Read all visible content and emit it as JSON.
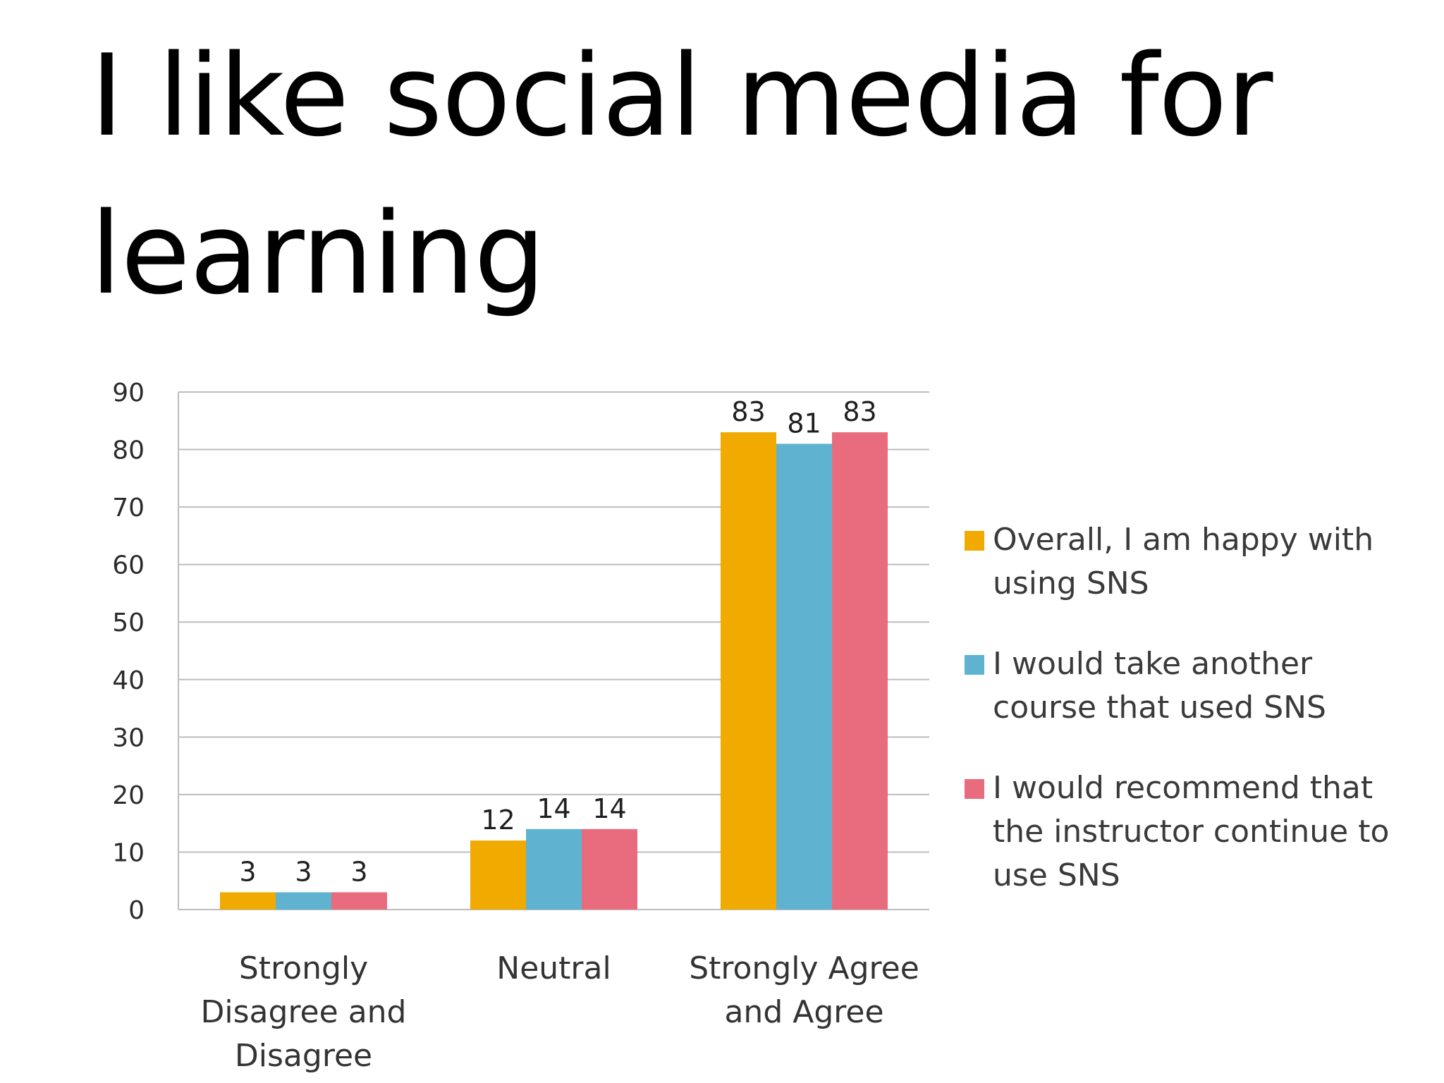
{
  "page": {
    "title": "I like social media for learning"
  },
  "chart_data": {
    "type": "bar",
    "title": "",
    "xlabel": "",
    "ylabel": "",
    "ylim": [
      0,
      90
    ],
    "yticks": [
      0,
      10,
      20,
      30,
      40,
      50,
      60,
      70,
      80,
      90
    ],
    "grid": true,
    "legend_position": "right",
    "categories": [
      [
        "Strongly",
        "Disagree and",
        "Disagree"
      ],
      [
        "Neutral"
      ],
      [
        "Strongly Agree",
        "and Agree"
      ]
    ],
    "series": [
      {
        "name": "Overall, I am happy with using SNS",
        "name_lines": [
          "Overall, I am happy with",
          "using SNS"
        ],
        "color": "#F0AA00",
        "values": [
          3,
          12,
          83
        ]
      },
      {
        "name": "I would take another course that used SNS",
        "name_lines": [
          "I would take another",
          "course that used SNS"
        ],
        "color": "#5FB3D0",
        "values": [
          3,
          14,
          81
        ]
      },
      {
        "name": "I would recommend that the instructor continue to use SNS",
        "name_lines": [
          "I would recommend that",
          "the instructor continue to",
          "use SNS"
        ],
        "color": "#E96C7E",
        "values": [
          3,
          14,
          83
        ]
      }
    ]
  }
}
